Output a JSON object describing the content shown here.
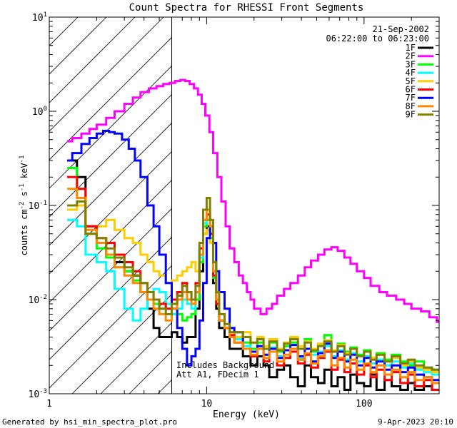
{
  "chart_data": {
    "type": "line",
    "title": "Count Spectra for RHESSI Front Segments",
    "xlabel": "Energy (keV)",
    "ylabel_parts": [
      "counts cm",
      "-2",
      " s",
      "-1",
      " keV",
      "-1"
    ],
    "xscale": "log",
    "yscale": "log",
    "xlim": [
      1,
      300
    ],
    "ylim": [
      0.001,
      10
    ],
    "x_tick_labels": [
      {
        "value": 1,
        "label": "1"
      },
      {
        "value": 10,
        "label": "10"
      },
      {
        "value": 100,
        "label": "100"
      }
    ],
    "y_tick_labels": [
      {
        "value": 0.001,
        "mant": "10",
        "exp": "-3"
      },
      {
        "value": 0.01,
        "mant": "10",
        "exp": "-2"
      },
      {
        "value": 0.1,
        "mant": "10",
        "exp": "-1"
      },
      {
        "value": 1,
        "mant": "10",
        "exp": "0"
      },
      {
        "value": 10,
        "mant": "10",
        "exp": "1"
      }
    ],
    "date": "21-Sep-2002",
    "time_range": "06:22:00 to 06:23:00",
    "hatched_region_keV": [
      1,
      6
    ],
    "annotation_lines": [
      "Includes Background",
      "Att A1, FDecim 1"
    ],
    "footer_left": "Generated by hsi_min_spectra_plot.pro",
    "footer_right": "9-Apr-2023 20:10",
    "series": [
      {
        "name": "1F",
        "color": "#000000",
        "x": [
          1.3,
          1.5,
          1.7,
          2.0,
          2.3,
          2.6,
          3.0,
          3.4,
          3.8,
          4.2,
          4.6,
          5.0,
          5.5,
          6.0,
          6.5,
          7.0,
          7.5,
          8.0,
          8.5,
          9.0,
          9.5,
          10.0,
          10.5,
          11.0,
          11.5,
          12.0,
          13,
          14,
          15,
          17,
          19,
          21,
          23,
          25,
          28,
          31,
          34,
          38,
          42,
          46,
          51,
          56,
          62,
          68,
          75,
          82,
          90,
          100,
          110,
          120,
          135,
          150,
          170,
          190,
          210,
          240,
          270
        ],
        "y": [
          0.3,
          0.2,
          0.06,
          0.04,
          0.03,
          0.025,
          0.02,
          0.018,
          0.012,
          0.008,
          0.005,
          0.004,
          0.004,
          0.0045,
          0.004,
          0.0035,
          0.004,
          0.004,
          0.008,
          0.02,
          0.05,
          0.06,
          0.04,
          0.015,
          0.008,
          0.005,
          0.004,
          0.003,
          0.003,
          0.0025,
          0.002,
          0.0025,
          0.002,
          0.0015,
          0.0018,
          0.002,
          0.0015,
          0.0012,
          0.002,
          0.0015,
          0.0013,
          0.0018,
          0.0012,
          0.0015,
          0.0011,
          0.0016,
          0.0013,
          0.0012,
          0.0016,
          0.0011,
          0.0014,
          0.0012,
          0.0011,
          0.0013,
          0.0011,
          0.0012,
          0.0011
        ]
      },
      {
        "name": "2F",
        "color": "#ff00ff",
        "x": [
          1.3,
          1.4,
          1.6,
          1.8,
          2.0,
          2.3,
          2.6,
          3.0,
          3.4,
          3.8,
          4.3,
          4.8,
          5.3,
          5.8,
          6.3,
          6.8,
          7.3,
          7.8,
          8.3,
          8.8,
          9.3,
          9.8,
          10.4,
          11.0,
          11.7,
          12.4,
          13.2,
          14,
          15,
          16,
          17,
          18,
          19,
          20,
          22,
          24,
          26,
          28,
          31,
          34,
          38,
          42,
          46,
          51,
          56,
          62,
          68,
          75,
          82,
          90,
          100,
          110,
          125,
          140,
          160,
          180,
          200,
          230,
          260,
          290
        ],
        "y": [
          0.48,
          0.52,
          0.58,
          0.65,
          0.72,
          0.85,
          1.0,
          1.2,
          1.4,
          1.6,
          1.75,
          1.85,
          1.95,
          2.0,
          2.1,
          2.15,
          2.1,
          1.95,
          1.75,
          1.5,
          1.2,
          0.9,
          0.6,
          0.36,
          0.2,
          0.11,
          0.06,
          0.035,
          0.025,
          0.018,
          0.015,
          0.012,
          0.01,
          0.008,
          0.007,
          0.008,
          0.009,
          0.011,
          0.013,
          0.015,
          0.018,
          0.022,
          0.026,
          0.03,
          0.034,
          0.036,
          0.033,
          0.028,
          0.024,
          0.02,
          0.017,
          0.014,
          0.012,
          0.011,
          0.01,
          0.009,
          0.008,
          0.0075,
          0.0065,
          0.0058
        ]
      },
      {
        "name": "3F",
        "color": "#00ff00",
        "x": [
          1.3,
          1.5,
          1.7,
          2.0,
          2.3,
          2.6,
          3.0,
          3.4,
          3.8,
          4.2,
          4.6,
          5.0,
          5.5,
          6.0,
          6.5,
          7.0,
          7.5,
          8.0,
          8.5,
          9.0,
          9.5,
          10.0,
          10.5,
          11.0,
          11.5,
          12.0,
          13,
          14,
          15,
          17,
          19,
          21,
          23,
          25,
          28,
          31,
          34,
          38,
          42,
          46,
          51,
          56,
          62,
          68,
          75,
          82,
          90,
          100,
          110,
          120,
          135,
          150,
          170,
          190,
          210,
          240,
          270
        ],
        "y": [
          0.25,
          0.12,
          0.05,
          0.035,
          0.028,
          0.022,
          0.02,
          0.016,
          0.012,
          0.01,
          0.009,
          0.008,
          0.009,
          0.008,
          0.007,
          0.006,
          0.0065,
          0.007,
          0.01,
          0.025,
          0.06,
          0.07,
          0.045,
          0.017,
          0.009,
          0.006,
          0.005,
          0.0045,
          0.004,
          0.0035,
          0.003,
          0.0035,
          0.003,
          0.0035,
          0.0028,
          0.0032,
          0.0035,
          0.003,
          0.0038,
          0.0028,
          0.0033,
          0.0042,
          0.0029,
          0.0034,
          0.0028,
          0.0031,
          0.0026,
          0.0029,
          0.0024,
          0.0027,
          0.0023,
          0.0026,
          0.0022,
          0.002,
          0.0022,
          0.0019,
          0.0018
        ]
      },
      {
        "name": "4F",
        "color": "#00ffff",
        "x": [
          1.3,
          1.5,
          1.7,
          2.0,
          2.3,
          2.6,
          3.0,
          3.4,
          3.8,
          4.2,
          4.6,
          5.0,
          5.5,
          6.0,
          6.5,
          7.0,
          7.5,
          8.0,
          8.5,
          9.0,
          9.5,
          10.0,
          10.5,
          11.0,
          11.5,
          12.0,
          13,
          14,
          15,
          17,
          19,
          21,
          23,
          25,
          28,
          31,
          34,
          38,
          42,
          46,
          51,
          56,
          62,
          68,
          75,
          82,
          90,
          100,
          110,
          120,
          135,
          150,
          170,
          190,
          210,
          240,
          270
        ],
        "y": [
          0.07,
          0.06,
          0.03,
          0.025,
          0.02,
          0.013,
          0.008,
          0.006,
          0.008,
          0.012,
          0.013,
          0.012,
          0.009,
          0.007,
          0.008,
          0.01,
          0.009,
          0.008,
          0.012,
          0.028,
          0.065,
          0.08,
          0.05,
          0.018,
          0.009,
          0.006,
          0.005,
          0.0042,
          0.0038,
          0.0032,
          0.0028,
          0.003,
          0.0026,
          0.0031,
          0.0025,
          0.0029,
          0.0033,
          0.0024,
          0.003,
          0.0026,
          0.0028,
          0.0032,
          0.0025,
          0.0029,
          0.0023,
          0.0027,
          0.0022,
          0.0025,
          0.0021,
          0.0023,
          0.002,
          0.0022,
          0.0019,
          0.0021,
          0.0018,
          0.0017,
          0.0016
        ]
      },
      {
        "name": "5F",
        "color": "#ffcc00",
        "x": [
          1.3,
          1.5,
          1.7,
          2.0,
          2.3,
          2.6,
          3.0,
          3.4,
          3.8,
          4.2,
          4.6,
          5.0,
          5.5,
          6.0,
          6.5,
          7.0,
          7.5,
          8.0,
          8.5,
          9.0,
          9.5,
          10.0,
          10.5,
          11.0,
          11.5,
          12.0,
          13,
          14,
          15,
          17,
          19,
          21,
          23,
          25,
          28,
          31,
          34,
          38,
          42,
          46,
          51,
          56,
          62,
          68,
          75,
          82,
          90,
          100,
          110,
          120,
          135,
          150,
          170,
          190,
          210,
          240,
          270
        ],
        "y": [
          0.09,
          0.1,
          0.05,
          0.06,
          0.07,
          0.055,
          0.045,
          0.04,
          0.03,
          0.025,
          0.02,
          0.018,
          0.015,
          0.016,
          0.018,
          0.02,
          0.022,
          0.025,
          0.02,
          0.03,
          0.05,
          0.055,
          0.04,
          0.02,
          0.01,
          0.007,
          0.005,
          0.0045,
          0.004,
          0.0045,
          0.0035,
          0.004,
          0.0032,
          0.0038,
          0.003,
          0.0035,
          0.004,
          0.0032,
          0.0036,
          0.003,
          0.0034,
          0.0037,
          0.0029,
          0.0033,
          0.0027,
          0.003,
          0.0025,
          0.0028,
          0.0024,
          0.0026,
          0.0022,
          0.0024,
          0.002,
          0.0022,
          0.0019,
          0.0018,
          0.0017
        ]
      },
      {
        "name": "6F",
        "color": "#ff0000",
        "x": [
          1.3,
          1.5,
          1.7,
          2.0,
          2.3,
          2.6,
          3.0,
          3.4,
          3.8,
          4.2,
          4.6,
          5.0,
          5.5,
          6.0,
          6.5,
          7.0,
          7.5,
          8.0,
          8.5,
          9.0,
          9.5,
          10.0,
          10.5,
          11.0,
          11.5,
          12.0,
          13,
          14,
          15,
          17,
          19,
          21,
          23,
          25,
          28,
          31,
          34,
          38,
          42,
          46,
          51,
          56,
          62,
          68,
          75,
          82,
          90,
          100,
          110,
          120,
          135,
          150,
          170,
          190,
          210,
          240,
          270
        ],
        "y": [
          0.2,
          0.15,
          0.06,
          0.045,
          0.04,
          0.03,
          0.025,
          0.02,
          0.015,
          0.012,
          0.01,
          0.009,
          0.008,
          0.01,
          0.012,
          0.015,
          0.012,
          0.01,
          0.015,
          0.035,
          0.07,
          0.08,
          0.05,
          0.018,
          0.009,
          0.006,
          0.005,
          0.0042,
          0.0035,
          0.003,
          0.0025,
          0.003,
          0.0022,
          0.0028,
          0.002,
          0.0024,
          0.0028,
          0.0021,
          0.0026,
          0.0019,
          0.0024,
          0.0028,
          0.0018,
          0.0023,
          0.0017,
          0.0021,
          0.0016,
          0.002,
          0.0015,
          0.0018,
          0.0014,
          0.0017,
          0.0013,
          0.0016,
          0.0012,
          0.0014,
          0.0011
        ]
      },
      {
        "name": "7F",
        "color": "#0000ff",
        "x": [
          1.3,
          1.4,
          1.6,
          1.8,
          2.0,
          2.2,
          2.4,
          2.6,
          2.9,
          3.2,
          3.5,
          3.8,
          4.2,
          4.6,
          5.0,
          5.5,
          6.0,
          6.5,
          7.0,
          7.5,
          8.0,
          8.5,
          9.0,
          9.5,
          10.0,
          10.5,
          11.0,
          11.5,
          12.0,
          13,
          14,
          15,
          17,
          19,
          21,
          23,
          25,
          28,
          31,
          34,
          38,
          42,
          46,
          51,
          56,
          62,
          68,
          75,
          82,
          90,
          100,
          110,
          120,
          135,
          150,
          170,
          190,
          210,
          240,
          270
        ],
        "y": [
          0.3,
          0.36,
          0.45,
          0.52,
          0.58,
          0.62,
          0.6,
          0.58,
          0.5,
          0.4,
          0.3,
          0.2,
          0.1,
          0.06,
          0.03,
          0.015,
          0.008,
          0.005,
          0.003,
          0.002,
          0.0025,
          0.003,
          0.006,
          0.015,
          0.045,
          0.06,
          0.04,
          0.02,
          0.012,
          0.008,
          0.005,
          0.0045,
          0.003,
          0.0028,
          0.0032,
          0.0026,
          0.003,
          0.0024,
          0.0029,
          0.0033,
          0.0025,
          0.003,
          0.0022,
          0.0027,
          0.0034,
          0.0024,
          0.0028,
          0.0022,
          0.0026,
          0.002,
          0.0024,
          0.0019,
          0.0022,
          0.0018,
          0.002,
          0.0017,
          0.0019,
          0.0016,
          0.0015,
          0.0014
        ]
      },
      {
        "name": "8F",
        "color": "#ff8800",
        "x": [
          1.3,
          1.5,
          1.7,
          2.0,
          2.3,
          2.6,
          3.0,
          3.4,
          3.8,
          4.2,
          4.6,
          5.0,
          5.5,
          6.0,
          6.5,
          7.0,
          7.5,
          8.0,
          8.5,
          9.0,
          9.5,
          10.0,
          10.5,
          11.0,
          11.5,
          12.0,
          13,
          14,
          15,
          17,
          19,
          21,
          23,
          25,
          28,
          31,
          34,
          38,
          42,
          46,
          51,
          56,
          62,
          68,
          75,
          82,
          90,
          100,
          110,
          120,
          135,
          150,
          170,
          190,
          210,
          240,
          270
        ],
        "y": [
          0.15,
          0.12,
          0.055,
          0.04,
          0.03,
          0.022,
          0.018,
          0.015,
          0.012,
          0.01,
          0.008,
          0.007,
          0.006,
          0.008,
          0.01,
          0.012,
          0.01,
          0.009,
          0.012,
          0.03,
          0.07,
          0.09,
          0.06,
          0.02,
          0.01,
          0.006,
          0.005,
          0.004,
          0.0035,
          0.003,
          0.0026,
          0.003,
          0.0024,
          0.0028,
          0.0022,
          0.0026,
          0.003,
          0.0023,
          0.0027,
          0.0021,
          0.0025,
          0.0029,
          0.002,
          0.0024,
          0.0019,
          0.0023,
          0.0018,
          0.0021,
          0.0017,
          0.002,
          0.0016,
          0.0018,
          0.0015,
          0.0017,
          0.0014,
          0.0015,
          0.0013
        ]
      },
      {
        "name": "9F",
        "color": "#808000",
        "x": [
          1.3,
          1.5,
          1.7,
          2.0,
          2.3,
          2.6,
          3.0,
          3.4,
          3.8,
          4.2,
          4.6,
          5.0,
          5.5,
          6.0,
          6.5,
          7.0,
          7.5,
          8.0,
          8.5,
          9.0,
          9.5,
          10.0,
          10.5,
          11.0,
          11.5,
          12.0,
          13,
          14,
          15,
          17,
          19,
          21,
          23,
          25,
          28,
          31,
          34,
          38,
          42,
          46,
          51,
          56,
          62,
          68,
          75,
          82,
          90,
          100,
          110,
          120,
          135,
          150,
          170,
          190,
          210,
          240,
          270
        ],
        "y": [
          0.1,
          0.11,
          0.05,
          0.045,
          0.035,
          0.028,
          0.022,
          0.018,
          0.015,
          0.012,
          0.01,
          0.008,
          0.007,
          0.009,
          0.011,
          0.014,
          0.012,
          0.01,
          0.014,
          0.04,
          0.09,
          0.12,
          0.07,
          0.025,
          0.012,
          0.007,
          0.0055,
          0.0045,
          0.0045,
          0.004,
          0.0035,
          0.0038,
          0.003,
          0.0036,
          0.0029,
          0.0034,
          0.0038,
          0.003,
          0.0035,
          0.0029,
          0.0032,
          0.0036,
          0.0028,
          0.0032,
          0.0026,
          0.003,
          0.0025,
          0.0028,
          0.0023,
          0.0026,
          0.0022,
          0.0025,
          0.0021,
          0.0023,
          0.002,
          0.0019,
          0.0018
        ]
      }
    ]
  }
}
